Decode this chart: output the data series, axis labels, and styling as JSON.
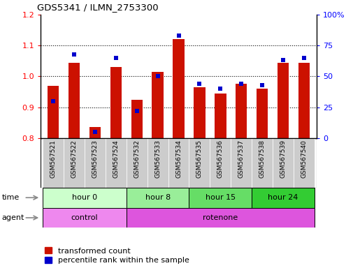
{
  "title": "GDS5341 / ILMN_2753300",
  "samples": [
    "GSM567521",
    "GSM567522",
    "GSM567523",
    "GSM567524",
    "GSM567532",
    "GSM567533",
    "GSM567534",
    "GSM567535",
    "GSM567536",
    "GSM567537",
    "GSM567538",
    "GSM567539",
    "GSM567540"
  ],
  "transformed_count": [
    0.97,
    1.045,
    0.835,
    1.03,
    0.925,
    1.015,
    1.12,
    0.965,
    0.945,
    0.975,
    0.96,
    1.045,
    1.045
  ],
  "percentile_rank": [
    30,
    68,
    5,
    65,
    22,
    50,
    83,
    44,
    40,
    44,
    43,
    63,
    65
  ],
  "ylim_left": [
    0.8,
    1.2
  ],
  "ylim_right": [
    0,
    100
  ],
  "yticks_left": [
    0.8,
    0.9,
    1.0,
    1.1,
    1.2
  ],
  "yticks_right": [
    0,
    25,
    50,
    75,
    100
  ],
  "yticklabels_right": [
    "0",
    "25",
    "50",
    "75",
    "100%"
  ],
  "bar_color": "#cc1100",
  "dot_color": "#0000cc",
  "bar_width": 0.55,
  "time_groups": [
    {
      "label": "hour 0",
      "start": 0,
      "end": 4,
      "color": "#ccffcc"
    },
    {
      "label": "hour 8",
      "start": 4,
      "end": 7,
      "color": "#99ee99"
    },
    {
      "label": "hour 15",
      "start": 7,
      "end": 10,
      "color": "#66dd66"
    },
    {
      "label": "hour 24",
      "start": 10,
      "end": 13,
      "color": "#33cc33"
    }
  ],
  "agent_groups": [
    {
      "label": "control",
      "start": 0,
      "end": 4,
      "color": "#ee88ee"
    },
    {
      "label": "rotenone",
      "start": 4,
      "end": 13,
      "color": "#dd55dd"
    }
  ],
  "legend_red_label": "transformed count",
  "legend_blue_label": "percentile rank within the sample",
  "xlabel_time": "time",
  "xlabel_agent": "agent",
  "background_color": "#ffffff",
  "tick_area_color": "#cccccc",
  "grid_lines": [
    0.9,
    1.0,
    1.1
  ]
}
